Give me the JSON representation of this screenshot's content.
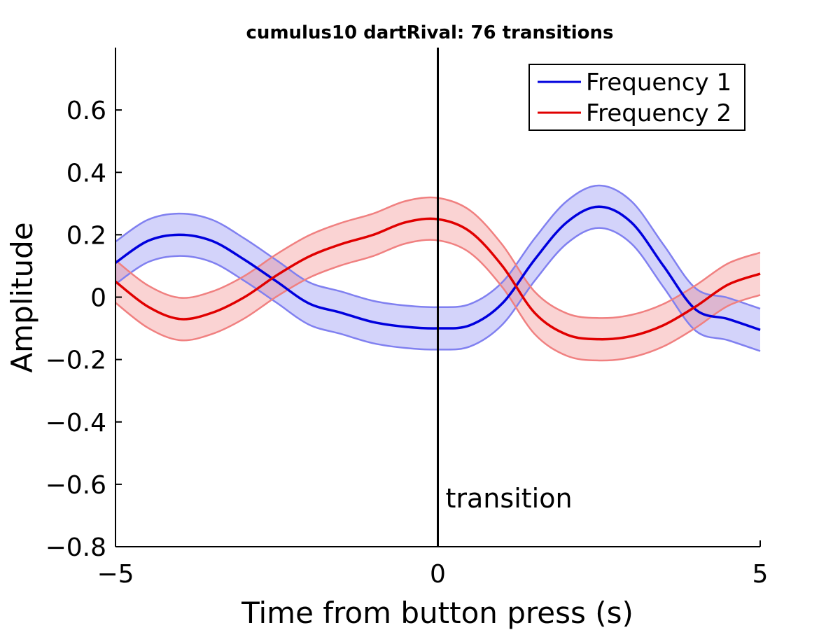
{
  "chart_data": {
    "type": "line",
    "title": "cumulus10 dartRival: 76 transitions",
    "xlabel": "Time from button press (s)",
    "ylabel": "Amplitude",
    "xlim": [
      -5,
      5
    ],
    "ylim": [
      -0.8,
      0.8
    ],
    "xticks": [
      -5,
      0,
      5
    ],
    "xtick_labels": [
      "−5",
      "0",
      "5"
    ],
    "yticks": [
      -0.8,
      -0.6,
      -0.4,
      -0.2,
      0,
      0.2,
      0.4,
      0.6
    ],
    "ytick_labels": [
      "−0.8",
      "−0.6",
      "−0.4",
      "−0.2",
      "0",
      "0.2",
      "0.4",
      "0.6"
    ],
    "grid": false,
    "legend_position": "top-right",
    "x": [
      -5,
      -4.5,
      -4,
      -3.5,
      -3,
      -2.5,
      -2,
      -1.5,
      -1,
      -0.5,
      0,
      0.5,
      1,
      1.5,
      2,
      2.5,
      3,
      3.5,
      4,
      4.5,
      5
    ],
    "series": [
      {
        "name": "Frequency 1",
        "color": "#0000dd",
        "band_color": "#8080f0",
        "values": [
          0.11,
          0.18,
          0.2,
          0.18,
          0.12,
          0.05,
          -0.02,
          -0.05,
          -0.08,
          -0.095,
          -0.1,
          -0.09,
          -0.02,
          0.12,
          0.24,
          0.29,
          0.24,
          0.1,
          -0.04,
          -0.07,
          -0.105
        ],
        "band_halfwidth": 0.068
      },
      {
        "name": "Frequency 2",
        "color": "#e00000",
        "band_color": "#f08080",
        "values": [
          0.05,
          -0.03,
          -0.07,
          -0.05,
          0.0,
          0.07,
          0.13,
          0.17,
          0.2,
          0.24,
          0.25,
          0.21,
          0.1,
          -0.05,
          -0.12,
          -0.135,
          -0.125,
          -0.09,
          -0.03,
          0.04,
          0.075
        ],
        "band_halfwidth": 0.068
      }
    ],
    "vline": {
      "x": 0,
      "label": "transition"
    }
  }
}
